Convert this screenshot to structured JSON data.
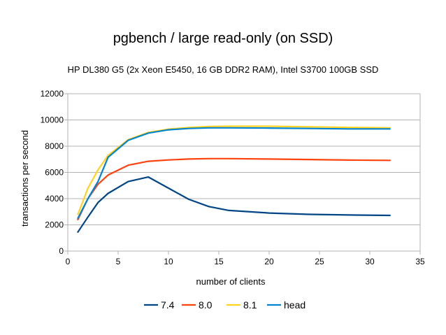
{
  "chart_data": {
    "type": "line",
    "title": "pgbench / large read-only (on SSD)",
    "subtitle": "HP DL380 G5 (2x Xeon E5450, 16 GB DDR2 RAM), Intel S3700 100GB SSD",
    "xlabel": "number of clients",
    "ylabel": "transactions per second",
    "xlim": [
      0,
      35
    ],
    "ylim": [
      0,
      12000
    ],
    "xticks": [
      0,
      5,
      10,
      15,
      20,
      25,
      30,
      35
    ],
    "yticks": [
      0,
      2000,
      4000,
      6000,
      8000,
      10000,
      12000
    ],
    "grid": "horizontal",
    "legend_position": "bottom",
    "x": [
      1,
      2,
      3,
      4,
      6,
      8,
      10,
      12,
      14,
      16,
      20,
      24,
      28,
      32
    ],
    "series": [
      {
        "name": "7.4",
        "color": "#004586",
        "values": [
          1450,
          2600,
          3700,
          4400,
          5300,
          5650,
          4800,
          3950,
          3400,
          3100,
          2900,
          2800,
          2750,
          2720
        ]
      },
      {
        "name": "8.0",
        "color": "#ff420e",
        "values": [
          2400,
          4000,
          5100,
          5800,
          6550,
          6850,
          6950,
          7020,
          7050,
          7050,
          7020,
          6980,
          6940,
          6920
        ]
      },
      {
        "name": "8.1",
        "color": "#ffd320",
        "values": [
          2800,
          4800,
          6200,
          7300,
          8500,
          9050,
          9300,
          9420,
          9500,
          9520,
          9520,
          9480,
          9430,
          9400
        ]
      },
      {
        "name": "head",
        "color": "#0084d1",
        "values": [
          2500,
          4000,
          5300,
          7150,
          8450,
          9000,
          9250,
          9350,
          9400,
          9400,
          9380,
          9350,
          9320,
          9320
        ]
      }
    ]
  }
}
